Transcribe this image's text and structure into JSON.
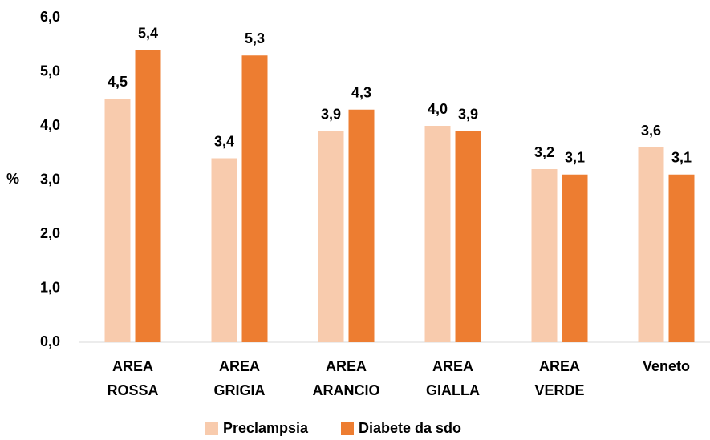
{
  "chart_data": {
    "type": "bar",
    "y_label": "%",
    "categories": [
      "AREA ROSSA",
      "AREA GRIGIA",
      "AREA ARANCIO",
      "AREA GIALLA",
      "AREA VERDE",
      "Veneto"
    ],
    "series": [
      {
        "name": "Preclampsia",
        "color": "#f8cbad",
        "values": [
          4.5,
          3.4,
          3.9,
          4.0,
          3.2,
          3.6
        ],
        "value_labels": [
          "4,5",
          "3,4",
          "3,9",
          "4,0",
          "3,2",
          "3,6"
        ]
      },
      {
        "name": "Diabete da sdo",
        "color": "#ed7d31",
        "values": [
          5.4,
          5.3,
          4.3,
          3.9,
          3.1,
          3.1
        ],
        "value_labels": [
          "5,4",
          "5,3",
          "4,3",
          "3,9",
          "3,1",
          "3,1"
        ]
      }
    ],
    "ylim": [
      0,
      6
    ],
    "yticks": [
      {
        "value": 0,
        "label": "0,0"
      },
      {
        "value": 1,
        "label": "1,0"
      },
      {
        "value": 2,
        "label": "2,0"
      },
      {
        "value": 3,
        "label": "3,0"
      },
      {
        "value": 4,
        "label": "4,0"
      },
      {
        "value": 5,
        "label": "5,0"
      },
      {
        "value": 6,
        "label": "6,0"
      }
    ],
    "grid": false,
    "legend": "bottom"
  }
}
